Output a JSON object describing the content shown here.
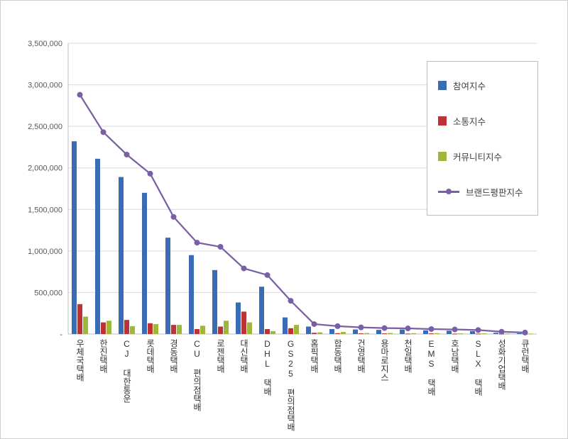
{
  "chart_data": {
    "type": "bar",
    "title": "",
    "categories": [
      "우체국택배",
      "한진택배",
      "CJ 대한통운",
      "롯데택배",
      "경동택배",
      "CU 편의점택배",
      "로젠택배",
      "대신택배",
      "DHL 택배",
      "GS25 편의점택배",
      "홈픽택배",
      "합동택배",
      "건영택배",
      "용마로지스",
      "천일택배",
      "EMS 택배",
      "호남택배",
      "SLX 택배",
      "성화기업택배",
      "큐런택배"
    ],
    "series": [
      {
        "name": "참여지수",
        "type": "bar",
        "color": "#3a6bb5",
        "values": [
          2320000,
          2110000,
          1890000,
          1700000,
          1160000,
          950000,
          770000,
          380000,
          570000,
          200000,
          90000,
          60000,
          55000,
          50000,
          55000,
          45000,
          40000,
          35000,
          15000,
          10000
        ]
      },
      {
        "name": "소통지수",
        "type": "bar",
        "color": "#be3134",
        "values": [
          360000,
          140000,
          170000,
          130000,
          110000,
          60000,
          90000,
          270000,
          60000,
          70000,
          15000,
          10000,
          8000,
          8000,
          5000,
          8000,
          5000,
          5000,
          4000,
          3000
        ]
      },
      {
        "name": "커뮤니티지수",
        "type": "bar",
        "color": "#9fb83b",
        "values": [
          210000,
          160000,
          95000,
          120000,
          110000,
          100000,
          160000,
          140000,
          35000,
          110000,
          20000,
          25000,
          12000,
          12000,
          10000,
          10000,
          8000,
          8000,
          6000,
          5000
        ]
      },
      {
        "name": "브랜드평판지수",
        "type": "line",
        "color": "#7a5fa6",
        "values": [
          2880000,
          2430000,
          2160000,
          1930000,
          1410000,
          1100000,
          1050000,
          790000,
          710000,
          400000,
          120000,
          95000,
          80000,
          72000,
          68000,
          60000,
          55000,
          48000,
          28000,
          18000
        ]
      }
    ],
    "ylim": [
      0,
      3500000
    ],
    "ytick_interval": 500000,
    "ytick_labels": [
      "-",
      "500,000",
      "1,000,000",
      "1,500,000",
      "2,000,000",
      "2,500,000",
      "3,000,000",
      "3,500,000"
    ],
    "grid": true,
    "legend_position": "right-top"
  }
}
